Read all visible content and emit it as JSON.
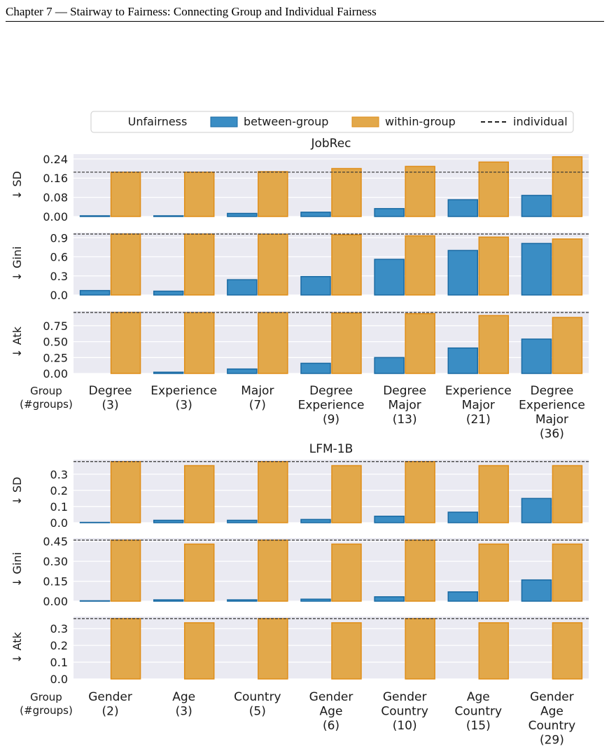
{
  "header": {
    "text": "Chapter  7  —  Stairway to Fairness: Connecting Group and Individual Fairness"
  },
  "legend": {
    "title": "Unfairness",
    "between_label": "between-group",
    "within_label": "within-group",
    "individual_label": "individual"
  },
  "colors": {
    "between": "#3a8dc4",
    "between_edge": "#1a6aa3",
    "within": "#e2a84a",
    "within_edge": "#df8d18",
    "panel_bg": "#eaeaf2"
  },
  "group_axis_label": [
    "Group",
    "(#groups)"
  ],
  "chart_data": [
    {
      "type": "bar",
      "title": "JobRec",
      "categories": [
        [
          "Degree",
          "(3)"
        ],
        [
          "Experience",
          "(3)"
        ],
        [
          "Major",
          "(7)"
        ],
        [
          "Degree",
          "Experience",
          "(9)"
        ],
        [
          "Degree",
          "Major",
          "(13)"
        ],
        [
          "Experience",
          "Major",
          "(21)"
        ],
        [
          "Degree",
          "Experience",
          "Major",
          "(36)"
        ]
      ],
      "panels": [
        {
          "ylabel": "↓ SD",
          "ylim": [
            0,
            0.26
          ],
          "yticks": [
            "0.00",
            "0.08",
            "0.16",
            "0.24"
          ],
          "individual": 0.185,
          "series": [
            {
              "name": "between-group",
              "values": [
                0.003,
                0.003,
                0.013,
                0.018,
                0.033,
                0.07,
                0.088
              ]
            },
            {
              "name": "within-group",
              "values": [
                0.185,
                0.185,
                0.187,
                0.2,
                0.209,
                0.227,
                0.249
              ]
            }
          ]
        },
        {
          "ylabel": "↓ Gini",
          "ylim": [
            0,
            0.98
          ],
          "yticks": [
            "0.0",
            "0.3",
            "0.6",
            "0.9"
          ],
          "individual": 0.958,
          "series": [
            {
              "name": "between-group",
              "values": [
                0.07,
                0.06,
                0.24,
                0.29,
                0.56,
                0.7,
                0.81
              ]
            },
            {
              "name": "within-group",
              "values": [
                0.958,
                0.957,
                0.955,
                0.945,
                0.93,
                0.91,
                0.88
              ]
            }
          ]
        },
        {
          "ylabel": "↓ Atk",
          "ylim": [
            0,
            0.98
          ],
          "yticks": [
            "0.00",
            "0.25",
            "0.50",
            "0.75"
          ],
          "individual": 0.958,
          "series": [
            {
              "name": "between-group",
              "values": [
                0.0,
                0.02,
                0.07,
                0.16,
                0.25,
                0.4,
                0.54
              ]
            },
            {
              "name": "within-group",
              "values": [
                0.958,
                0.955,
                0.955,
                0.95,
                0.94,
                0.91,
                0.88
              ]
            }
          ]
        }
      ]
    },
    {
      "type": "bar",
      "title": "LFM-1B",
      "categories": [
        [
          "Gender",
          "(2)"
        ],
        [
          "Age",
          "(3)"
        ],
        [
          "Country",
          "(5)"
        ],
        [
          "Gender",
          "Age",
          "(6)"
        ],
        [
          "Gender",
          "Country",
          "(10)"
        ],
        [
          "Age",
          "Country",
          "(15)"
        ],
        [
          "Gender",
          "Age",
          "Country",
          "(29)"
        ]
      ],
      "panels": [
        {
          "ylabel": "↓ SD",
          "ylim": [
            0,
            0.39
          ],
          "yticks": [
            "0.0",
            "0.1",
            "0.2",
            "0.3"
          ],
          "individual": 0.378,
          "series": [
            {
              "name": "between-group",
              "values": [
                0.002,
                0.015,
                0.015,
                0.02,
                0.04,
                0.065,
                0.15
              ]
            },
            {
              "name": "within-group",
              "values": [
                0.378,
                0.353,
                0.378,
                0.353,
                0.378,
                0.353,
                0.353
              ]
            }
          ]
        },
        {
          "ylabel": "↓ Gini",
          "ylim": [
            0,
            0.475
          ],
          "yticks": [
            "0.00",
            "0.15",
            "0.30",
            "0.45"
          ],
          "individual": 0.46,
          "series": [
            {
              "name": "between-group",
              "values": [
                0.003,
                0.01,
                0.01,
                0.015,
                0.033,
                0.07,
                0.16
              ]
            },
            {
              "name": "within-group",
              "values": [
                0.46,
                0.43,
                0.46,
                0.43,
                0.46,
                0.43,
                0.43
              ]
            }
          ]
        },
        {
          "ylabel": "↓ Atk",
          "ylim": [
            0,
            0.372
          ],
          "yticks": [
            "0.0",
            "0.1",
            "0.2",
            "0.3"
          ],
          "individual": 0.36,
          "series": [
            {
              "name": "between-group",
              "values": [
                0.0,
                0.0,
                0.0,
                0.0,
                0.0,
                0.0,
                0.0
              ]
            },
            {
              "name": "within-group",
              "values": [
                0.36,
                0.335,
                0.36,
                0.335,
                0.36,
                0.335,
                0.335
              ]
            }
          ]
        }
      ]
    }
  ]
}
